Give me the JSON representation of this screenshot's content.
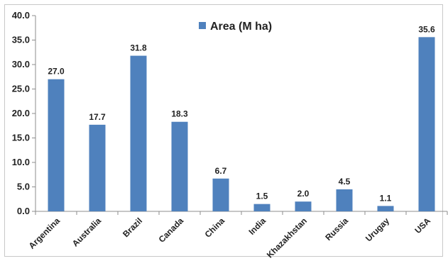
{
  "chart_data": {
    "type": "bar",
    "categories": [
      "Argentina",
      "Australia",
      "Brazil",
      "Canada",
      "China",
      "India",
      "Khazakhstan",
      "Russia",
      "Urugay",
      "USA"
    ],
    "series": [
      {
        "name": "Area (M ha)",
        "values": [
          27.0,
          17.7,
          31.8,
          18.3,
          6.7,
          1.5,
          2.0,
          4.5,
          1.1,
          35.6
        ]
      }
    ],
    "data_labels": [
      "27.0",
      "17.7",
      "31.8",
      "18.3",
      "6.7",
      "1.5",
      "2.0",
      "4.5",
      "1.1",
      "35.6"
    ],
    "y_ticks": [
      "0.0",
      "5.0",
      "10.0",
      "15.0",
      "20.0",
      "25.0",
      "30.0",
      "35.0",
      "40.0"
    ],
    "ylim": [
      0,
      40
    ],
    "grid": false,
    "legend_position": "top-center",
    "colors": {
      "bar": "#4f81bd",
      "axis": "#8c8c8c",
      "frame": "#c8c8c8"
    }
  }
}
